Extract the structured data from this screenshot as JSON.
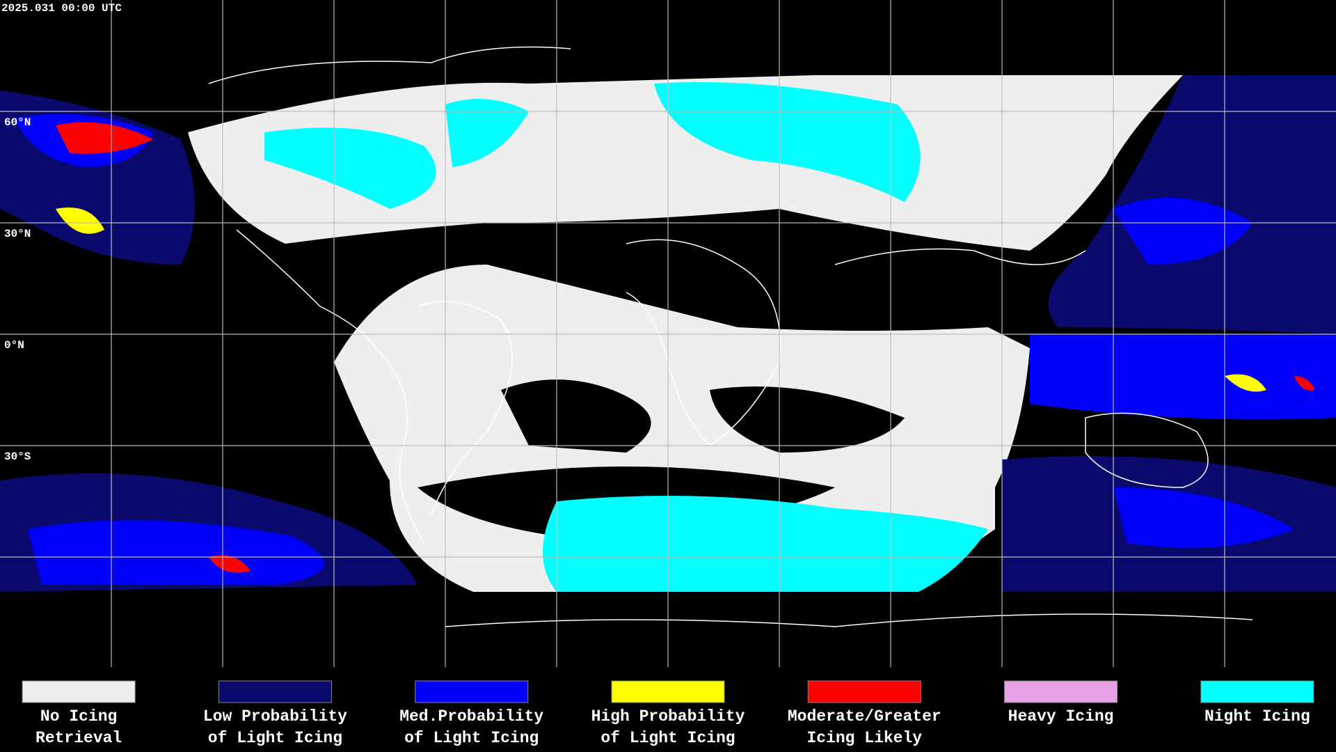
{
  "timestamp": "2025.031 00:00 UTC",
  "latitude_labels": [
    "60°N",
    "30°N",
    "0°N",
    "30°S"
  ],
  "legend": [
    {
      "label": [
        "No Icing",
        "Retrieval"
      ],
      "color": "#eeeeee"
    },
    {
      "label": [
        "Low Probability",
        "of Light Icing"
      ],
      "color": "#0a0a6e"
    },
    {
      "label": [
        "Med.Probability",
        "of Light Icing"
      ],
      "color": "#0000ff"
    },
    {
      "label": [
        "High Probability",
        "of Light Icing"
      ],
      "color": "#ffff00"
    },
    {
      "label": [
        "Moderate/Greater",
        "Icing Likely"
      ],
      "color": "#ff0000"
    },
    {
      "label": [
        "Heavy Icing"
      ],
      "color": "#e8a0e8"
    },
    {
      "label": [
        "Night Icing"
      ],
      "color": "#00ffff"
    }
  ]
}
